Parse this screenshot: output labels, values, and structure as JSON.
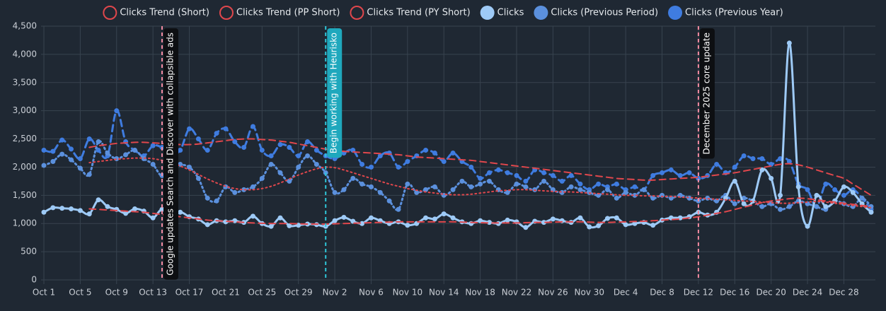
{
  "chart_data": {
    "type": "line",
    "categories": [
      "Oct 1",
      null,
      null,
      null,
      "Oct 5",
      null,
      null,
      null,
      "Oct 9",
      null,
      null,
      null,
      "Oct 13",
      null,
      null,
      null,
      "Oct 17",
      null,
      null,
      null,
      "Oct 21",
      null,
      null,
      null,
      "Oct 25",
      null,
      null,
      null,
      "Oct 29",
      null,
      null,
      null,
      "Nov 2",
      null,
      null,
      null,
      "Nov 6",
      null,
      null,
      null,
      "Nov 10",
      null,
      null,
      null,
      "Nov 14",
      null,
      null,
      null,
      "Nov 18",
      null,
      null,
      null,
      "Nov 22",
      null,
      null,
      null,
      "Nov 26",
      null,
      null,
      null,
      "Nov 30",
      null,
      null,
      null,
      "Dec 4",
      null,
      null,
      null,
      "Dec 8",
      null,
      null,
      null,
      "Dec 12",
      null,
      null,
      null,
      "Dec 16",
      null,
      null,
      null,
      "Dec 20",
      null,
      null,
      null,
      "Dec 24",
      null,
      null,
      null,
      "Dec 28",
      null,
      null,
      null
    ],
    "ylim": [
      0,
      4500
    ],
    "yticks": [
      0,
      500,
      {
        "value": 1000,
        "label": "1,000"
      },
      {
        "value": 1500,
        "label": "1,500"
      },
      {
        "value": 2000,
        "label": "2,000"
      },
      {
        "value": 2500,
        "label": "2,500"
      },
      {
        "value": 3000,
        "label": "3,000"
      },
      {
        "value": 3500,
        "label": "3,500"
      },
      {
        "value": 4000,
        "label": "4,000"
      },
      {
        "value": 4500,
        "label": "4,500"
      }
    ],
    "grid": true,
    "legend": "top",
    "series": [
      {
        "name": "Clicks Trend (Short)",
        "color": "#e0474c",
        "dash": "dashed",
        "trend": true,
        "values": [
          null,
          null,
          null,
          null,
          null,
          1260,
          1250,
          1240,
          1230,
          1220,
          1210,
          1200,
          1180,
          1160,
          1140,
          1120,
          1100,
          1080,
          1060,
          1050,
          1040,
          1030,
          1020,
          1010,
          1005,
          1000,
          1000,
          1000,
          995,
          990,
          990,
          990,
          995,
          1000,
          1005,
          1010,
          1015,
          1020,
          1025,
          1030,
          1030,
          1030,
          1030,
          1030,
          1030,
          1030,
          1025,
          1020,
          1015,
          1010,
          1010,
          1010,
          1010,
          1015,
          1020,
          1020,
          1025,
          1030,
          1030,
          1030,
          1025,
          1020,
          1020,
          1025,
          1030,
          1035,
          1040,
          1050,
          1060,
          1070,
          1080,
          1100,
          1120,
          1150,
          1180,
          1210,
          1250,
          1290,
          1330,
          1370,
          1400,
          1420,
          1440,
          1450,
          1440,
          1420,
          1400,
          1380,
          1360,
          1340,
          1320,
          1300
        ]
      },
      {
        "name": "Clicks Trend (PP Short)",
        "color": "#e0474c",
        "dash": "dotted",
        "trend": true,
        "values": [
          null,
          null,
          null,
          null,
          null,
          2080,
          2100,
          2120,
          2140,
          2150,
          2160,
          2160,
          2150,
          2120,
          2080,
          2020,
          1950,
          1870,
          1790,
          1720,
          1660,
          1620,
          1600,
          1600,
          1620,
          1660,
          1720,
          1790,
          1860,
          1920,
          1970,
          2000,
          1990,
          1950,
          1900,
          1850,
          1800,
          1750,
          1700,
          1660,
          1620,
          1590,
          1560,
          1540,
          1520,
          1510,
          1510,
          1520,
          1540,
          1560,
          1580,
          1590,
          1600,
          1600,
          1590,
          1580,
          1570,
          1560,
          1560,
          1550,
          1540,
          1530,
          1520,
          1510,
          1500,
          1500,
          1490,
          1490,
          1480,
          1480,
          1470,
          1460,
          1450,
          1440,
          1430,
          1420,
          1410,
          1400,
          1390,
          1380,
          1370,
          1360,
          1360,
          1370,
          1380,
          1390,
          1380,
          1360,
          1340,
          1320,
          1300,
          1280
        ]
      },
      {
        "name": "Clicks Trend (PY Short)",
        "color": "#e0474c",
        "dash": "dashed",
        "trend": true,
        "values": [
          null,
          null,
          null,
          null,
          null,
          2350,
          2380,
          2400,
          2420,
          2430,
          2440,
          2440,
          2430,
          2420,
          2410,
          2400,
          2400,
          2410,
          2430,
          2450,
          2470,
          2490,
          2500,
          2500,
          2490,
          2480,
          2460,
          2440,
          2410,
          2380,
          2350,
          2320,
          2300,
          2280,
          2270,
          2260,
          2250,
          2240,
          2230,
          2220,
          2200,
          2180,
          2170,
          2160,
          2150,
          2140,
          2130,
          2120,
          2100,
          2080,
          2060,
          2040,
          2020,
          2000,
          1980,
          1960,
          1940,
          1920,
          1900,
          1880,
          1860,
          1840,
          1820,
          1800,
          1790,
          1780,
          1770,
          1770,
          1780,
          1790,
          1800,
          1810,
          1820,
          1840,
          1860,
          1880,
          1900,
          1930,
          1960,
          1990,
          2020,
          2050,
          2060,
          2040,
          2000,
          1950,
          1900,
          1850,
          1800,
          1700,
          1600,
          1500
        ]
      },
      {
        "name": "Clicks",
        "color": "#9ecaf6",
        "dash": "solid",
        "trend": false,
        "values": [
          1200,
          1280,
          1270,
          1260,
          1230,
          1170,
          1420,
          1300,
          1250,
          1180,
          1260,
          1220,
          1100,
          1250,
          1100,
          1200,
          1120,
          1080,
          980,
          1050,
          1030,
          1050,
          1020,
          1130,
          1000,
          950,
          1100,
          960,
          970,
          990,
          980,
          950,
          1050,
          1110,
          1040,
          1000,
          1100,
          1050,
          1000,
          1030,
          970,
          1000,
          1100,
          1080,
          1170,
          1100,
          1030,
          1000,
          1050,
          1020,
          1000,
          1060,
          1030,
          930,
          1040,
          1020,
          1080,
          1050,
          1020,
          1100,
          940,
          960,
          1090,
          1100,
          980,
          1000,
          1020,
          970,
          1060,
          1100,
          1100,
          1120,
          1200,
          1150,
          1200,
          1450,
          1750,
          1350,
          1400,
          1950,
          1800,
          1500,
          4200,
          1650,
          950,
          1500,
          1300,
          1400,
          1650,
          1550,
          1350,
          1200
        ]
      },
      {
        "name": "Clicks (Previous Period)",
        "color": "#5b90dd",
        "dash": "dotted",
        "trend": false,
        "values": [
          2030,
          2100,
          2230,
          2130,
          1980,
          1870,
          2450,
          2250,
          2150,
          2220,
          2300,
          2150,
          2050,
          1850,
          2100,
          2050,
          2000,
          1800,
          1450,
          1400,
          1650,
          1550,
          1600,
          1650,
          1800,
          2050,
          1900,
          1750,
          2000,
          2200,
          2050,
          1900,
          1550,
          1600,
          1800,
          1700,
          1650,
          1550,
          1400,
          1250,
          1700,
          1550,
          1600,
          1650,
          1500,
          1600,
          1750,
          1650,
          1700,
          1750,
          1600,
          1550,
          1700,
          1650,
          1600,
          1750,
          1600,
          1550,
          1650,
          1600,
          1550,
          1500,
          1600,
          1450,
          1550,
          1500,
          1600,
          1450,
          1500,
          1450,
          1500,
          1450,
          1400,
          1450,
          1400,
          1500,
          1350,
          1450,
          1400,
          1300,
          1350,
          1250,
          1300,
          1400,
          1350,
          1300,
          1250,
          1400,
          1350,
          1300,
          1450,
          1300
        ]
      },
      {
        "name": "Clicks (Previous Year)",
        "color": "#3f7ce0",
        "dash": "dashed",
        "trend": false,
        "values": [
          2300,
          2280,
          2480,
          2320,
          2150,
          2500,
          2300,
          2200,
          3000,
          2450,
          2300,
          2200,
          2380,
          2350,
          2250,
          2300,
          2680,
          2500,
          2300,
          2600,
          2680,
          2450,
          2350,
          2720,
          2300,
          2200,
          2400,
          2350,
          2200,
          2450,
          2300,
          2200,
          2150,
          2250,
          2300,
          2050,
          2000,
          2200,
          2250,
          2000,
          2100,
          2200,
          2300,
          2250,
          2100,
          2250,
          2100,
          2000,
          1800,
          1900,
          1950,
          1900,
          1850,
          1750,
          1950,
          1900,
          1850,
          1750,
          1850,
          1700,
          1600,
          1700,
          1650,
          1700,
          1600,
          1650,
          1600,
          1850,
          1900,
          1950,
          1850,
          1900,
          1800,
          1850,
          2050,
          1900,
          2000,
          2200,
          2150,
          2150,
          2050,
          2150,
          2100,
          1700,
          1600,
          1300,
          1700,
          1600,
          1500,
          1600,
          1450,
          1250
        ]
      }
    ],
    "annotations": [
      {
        "label": "Google updates Search and Discover with collapsible ads",
        "index": 13,
        "color": "#f28aa0",
        "box": "#0d0f12"
      },
      {
        "label": "Begin working with Heurisko",
        "index": 31,
        "color": "#2fc6d9",
        "box": "#1fa8bd"
      },
      {
        "label": "December 2025 core update",
        "index": 72,
        "color": "#f28aa0",
        "box": "#0d0f12"
      }
    ]
  }
}
